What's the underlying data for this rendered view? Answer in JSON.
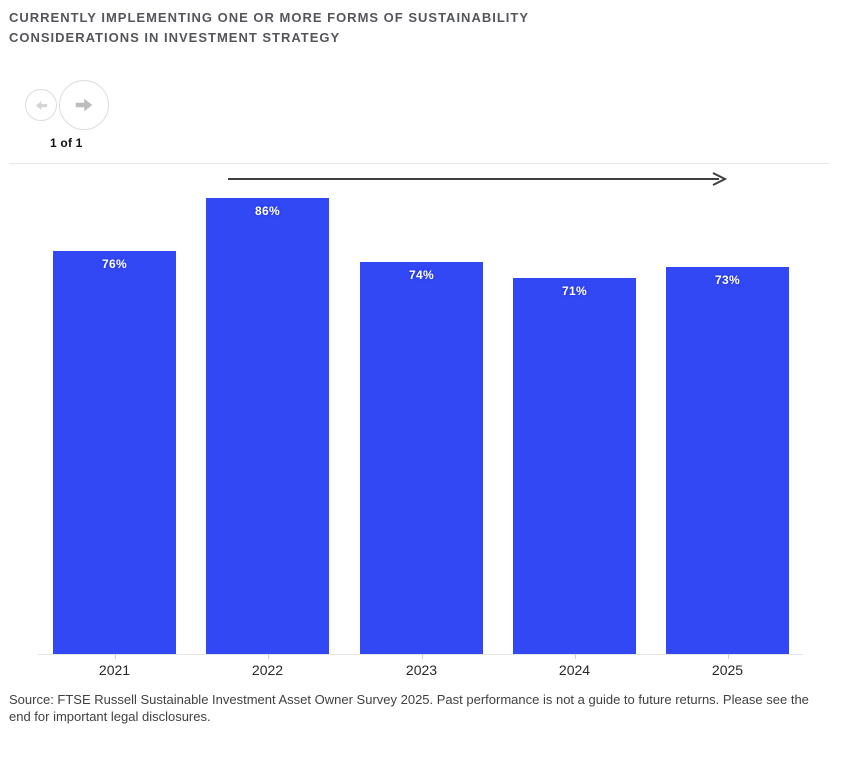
{
  "header": {
    "title_line1": "CURRENTLY IMPLEMENTING ONE OR MORE FORMS OF SUSTAINABILITY",
    "title_line2": "CONSIDERATIONS IN INVESTMENT STRATEGY"
  },
  "nav": {
    "prev_icon": "arrow-left-icon",
    "next_icon": "arrow-right-icon",
    "page_indicator": "1 of 1"
  },
  "chart_data": {
    "type": "bar",
    "title": "CURRENTLY IMPLEMENTING ONE OR MORE FORMS OF SUSTAINABILITY CONSIDERATIONS IN INVESTMENT STRATEGY",
    "categories": [
      "2021",
      "2022",
      "2023",
      "2024",
      "2025"
    ],
    "values": [
      76,
      86,
      74,
      71,
      73
    ],
    "value_labels": [
      "76%",
      "86%",
      "74%",
      "71%",
      "73%"
    ],
    "xlabel": "",
    "ylabel": "",
    "ylim": [
      0,
      100
    ],
    "grid": "off",
    "legend": "none",
    "annotations": [
      "rightward trend arrow drawn above bars"
    ],
    "bar_color": "#3348F5",
    "value_label_color": "#FFFFFF"
  },
  "footer": {
    "source": "Source: FTSE Russell Sustainable Investment Asset Owner Survey 2025. Past performance is not a guide to future returns. Please see the end for important legal disclosures."
  },
  "colors": {
    "title_text": "#54565B",
    "axis_line": "#E4E4E4",
    "year_label_text": "#282828",
    "source_text": "#414141",
    "nav_border": "#DCDCDC",
    "nav_arrow_disabled": "#D5D5D5",
    "nav_arrow_enabled": "#BDBDBD",
    "trend_arrow": "#3F3F3F",
    "background": "#FFFFFF"
  }
}
